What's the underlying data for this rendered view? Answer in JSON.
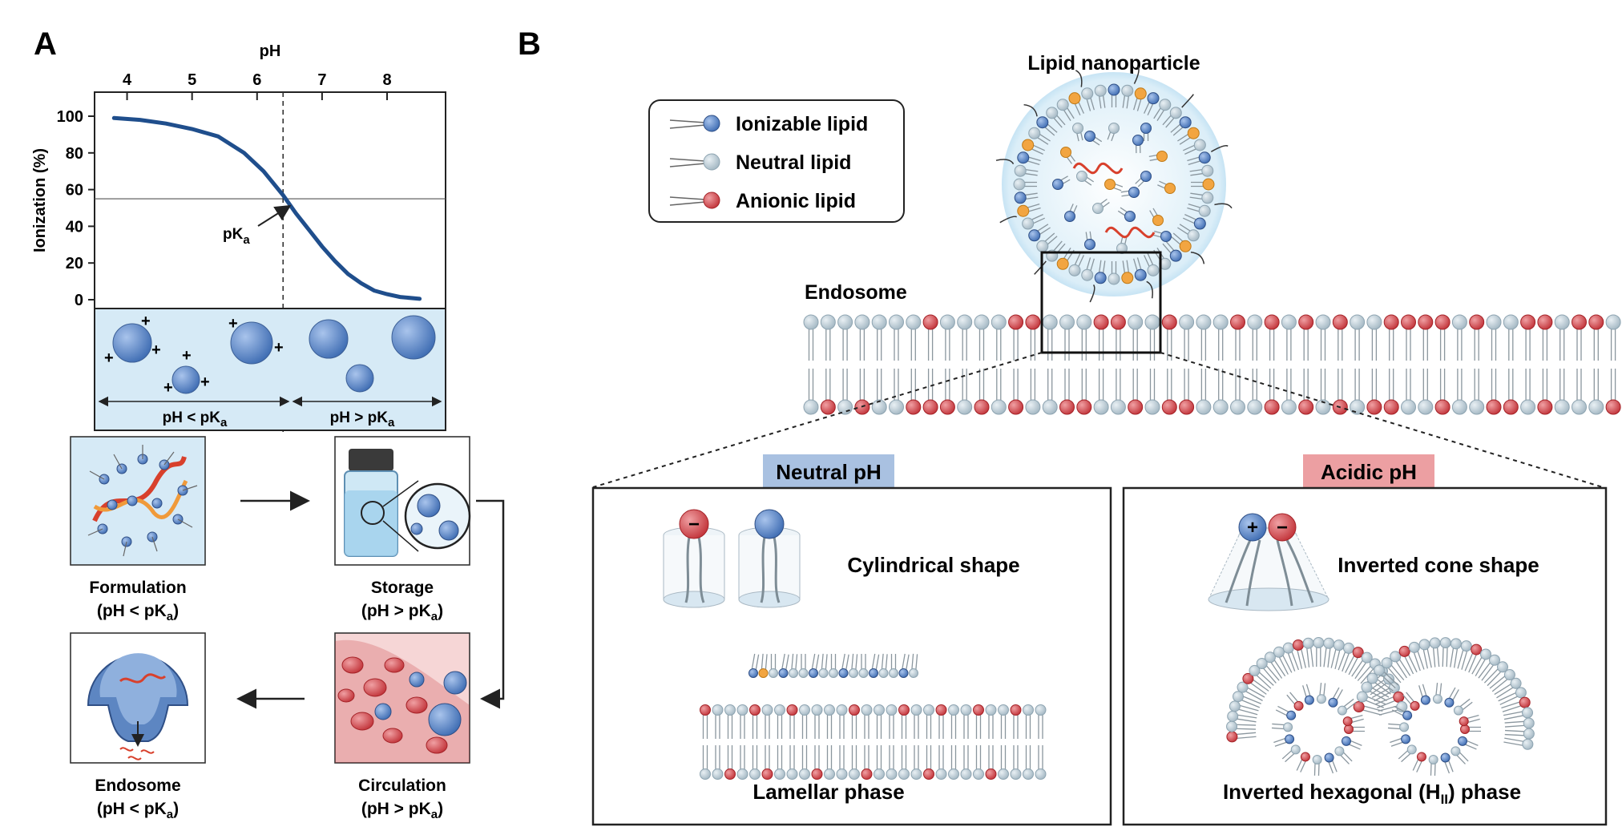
{
  "panel_a": {
    "letter": "A",
    "chart_data": {
      "type": "line",
      "title": "",
      "xlabel": "pH",
      "ylabel": "Ionization (%)",
      "x_ticks": [
        "4",
        "5",
        "6",
        "7",
        "8"
      ],
      "y_ticks": [
        "100",
        "80",
        "60",
        "40",
        "20",
        "0"
      ],
      "xlim": [
        3.5,
        8.9
      ],
      "ylim": [
        0,
        100
      ],
      "grid": false,
      "series": [
        {
          "x": [
            3.8,
            4.2,
            4.6,
            5.0,
            5.4,
            5.8,
            6.1,
            6.4,
            6.6,
            6.8,
            7.0,
            7.2,
            7.4,
            7.6,
            7.8,
            8.0,
            8.2,
            8.5
          ],
          "values": [
            99,
            98,
            96,
            93,
            89,
            80,
            70,
            57,
            47,
            38,
            29,
            21,
            14,
            9,
            5,
            3,
            1.5,
            0.5
          ]
        }
      ],
      "pka_x": 6.4,
      "pka_y": 55,
      "pka_label": "pK",
      "pka_sub": "a"
    },
    "ph_compare": {
      "left": "pH < pK",
      "right": "pH > pK",
      "sub": "a",
      "plus": "+"
    },
    "stages": {
      "formulation": {
        "name": "Formulation",
        "cond": "(pH < pK",
        "sub": "a",
        "close": ")"
      },
      "storage": {
        "name": "Storage",
        "cond": "(pH > pK",
        "sub": "a",
        "close": ")"
      },
      "endosome": {
        "name": "Endosome",
        "cond": "(pH < pK",
        "sub": "a",
        "close": ")"
      },
      "circulation": {
        "name": "Circulation",
        "cond": "(pH > pK",
        "sub": "a",
        "close": ")"
      }
    }
  },
  "panel_b": {
    "letter": "B",
    "legend": [
      {
        "label": "Ionizable lipid",
        "color": "#5b87c9"
      },
      {
        "label": "Neutral lipid",
        "color": "#b9ccd6"
      },
      {
        "label": "Anionic lipid",
        "color": "#d44a4f"
      }
    ],
    "nanoparticle_label": "Lipid nanoparticle",
    "endosome_label": "Endosome",
    "neutral": {
      "tag": "Neutral pH",
      "tag_color": "#a9c1e1",
      "shape": "Cylindrical shape",
      "phase": "Lamellar phase",
      "minus": "−"
    },
    "acidic": {
      "tag": "Acidic pH",
      "tag_color": "#ec9fa2",
      "shape": "Inverted cone shape",
      "phase_pre": "Inverted hexagonal (H",
      "phase_sub": "II",
      "phase_post": ") phase",
      "plus": "+",
      "minus": "−"
    }
  },
  "colors": {
    "curve": "#1f4e8c",
    "ionizable": "#5b87c9",
    "neutral": "#b9ccd6",
    "anionic": "#d44a4f",
    "light_bg": "#d6eaf6",
    "orange": "#f2a541"
  }
}
